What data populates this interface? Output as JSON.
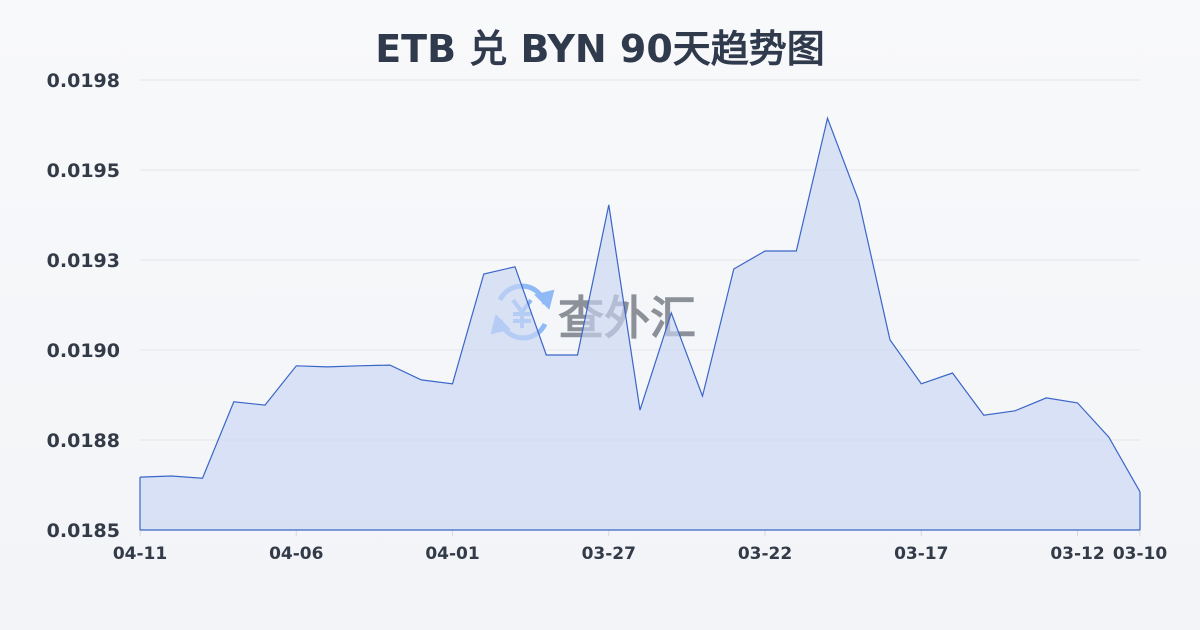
{
  "chart_data": {
    "type": "area",
    "title": "ETB 兑 BYN 90天趋势图",
    "xlabel": "",
    "ylabel": "",
    "x": [
      "04-11",
      "04-10",
      "04-09",
      "04-08",
      "04-07",
      "04-06",
      "04-05",
      "04-04",
      "04-03",
      "04-02",
      "04-01",
      "03-31",
      "03-30",
      "03-29",
      "03-28",
      "03-27",
      "03-26",
      "03-25",
      "03-24",
      "03-23",
      "03-22",
      "03-21",
      "03-20",
      "03-19",
      "03-18",
      "03-17",
      "03-16",
      "03-15",
      "03-14",
      "03-13",
      "03-12",
      "03-11",
      "03-10"
    ],
    "values": [
      0.018647,
      0.01865,
      0.018644,
      0.018856,
      0.018847,
      0.018956,
      0.018953,
      0.018956,
      0.018958,
      0.018917,
      0.018906,
      0.019211,
      0.019231,
      0.018986,
      0.018986,
      0.019403,
      0.018833,
      0.019103,
      0.018872,
      0.019225,
      0.019275,
      0.019275,
      0.019644,
      0.019414,
      0.019028,
      0.018906,
      0.018936,
      0.018819,
      0.018831,
      0.018867,
      0.018853,
      0.018758,
      0.018606
    ],
    "ylim": [
      0.0185,
      0.01975
    ],
    "yticks": [
      0.0185,
      0.01875,
      0.019,
      0.01925,
      0.0195,
      0.01975
    ],
    "ytick_labels": [
      "0.0185",
      "0.0188",
      "0.0190",
      "0.0193",
      "0.0195",
      "0.0198"
    ],
    "xtick_labels": [
      "04-11",
      "04-06",
      "04-01",
      "03-27",
      "03-22",
      "03-17",
      "03-12",
      "03-10"
    ],
    "grid": true,
    "line_color": "#3a66c8",
    "fill_color": "#c9d6f2",
    "watermark": "查外汇"
  }
}
